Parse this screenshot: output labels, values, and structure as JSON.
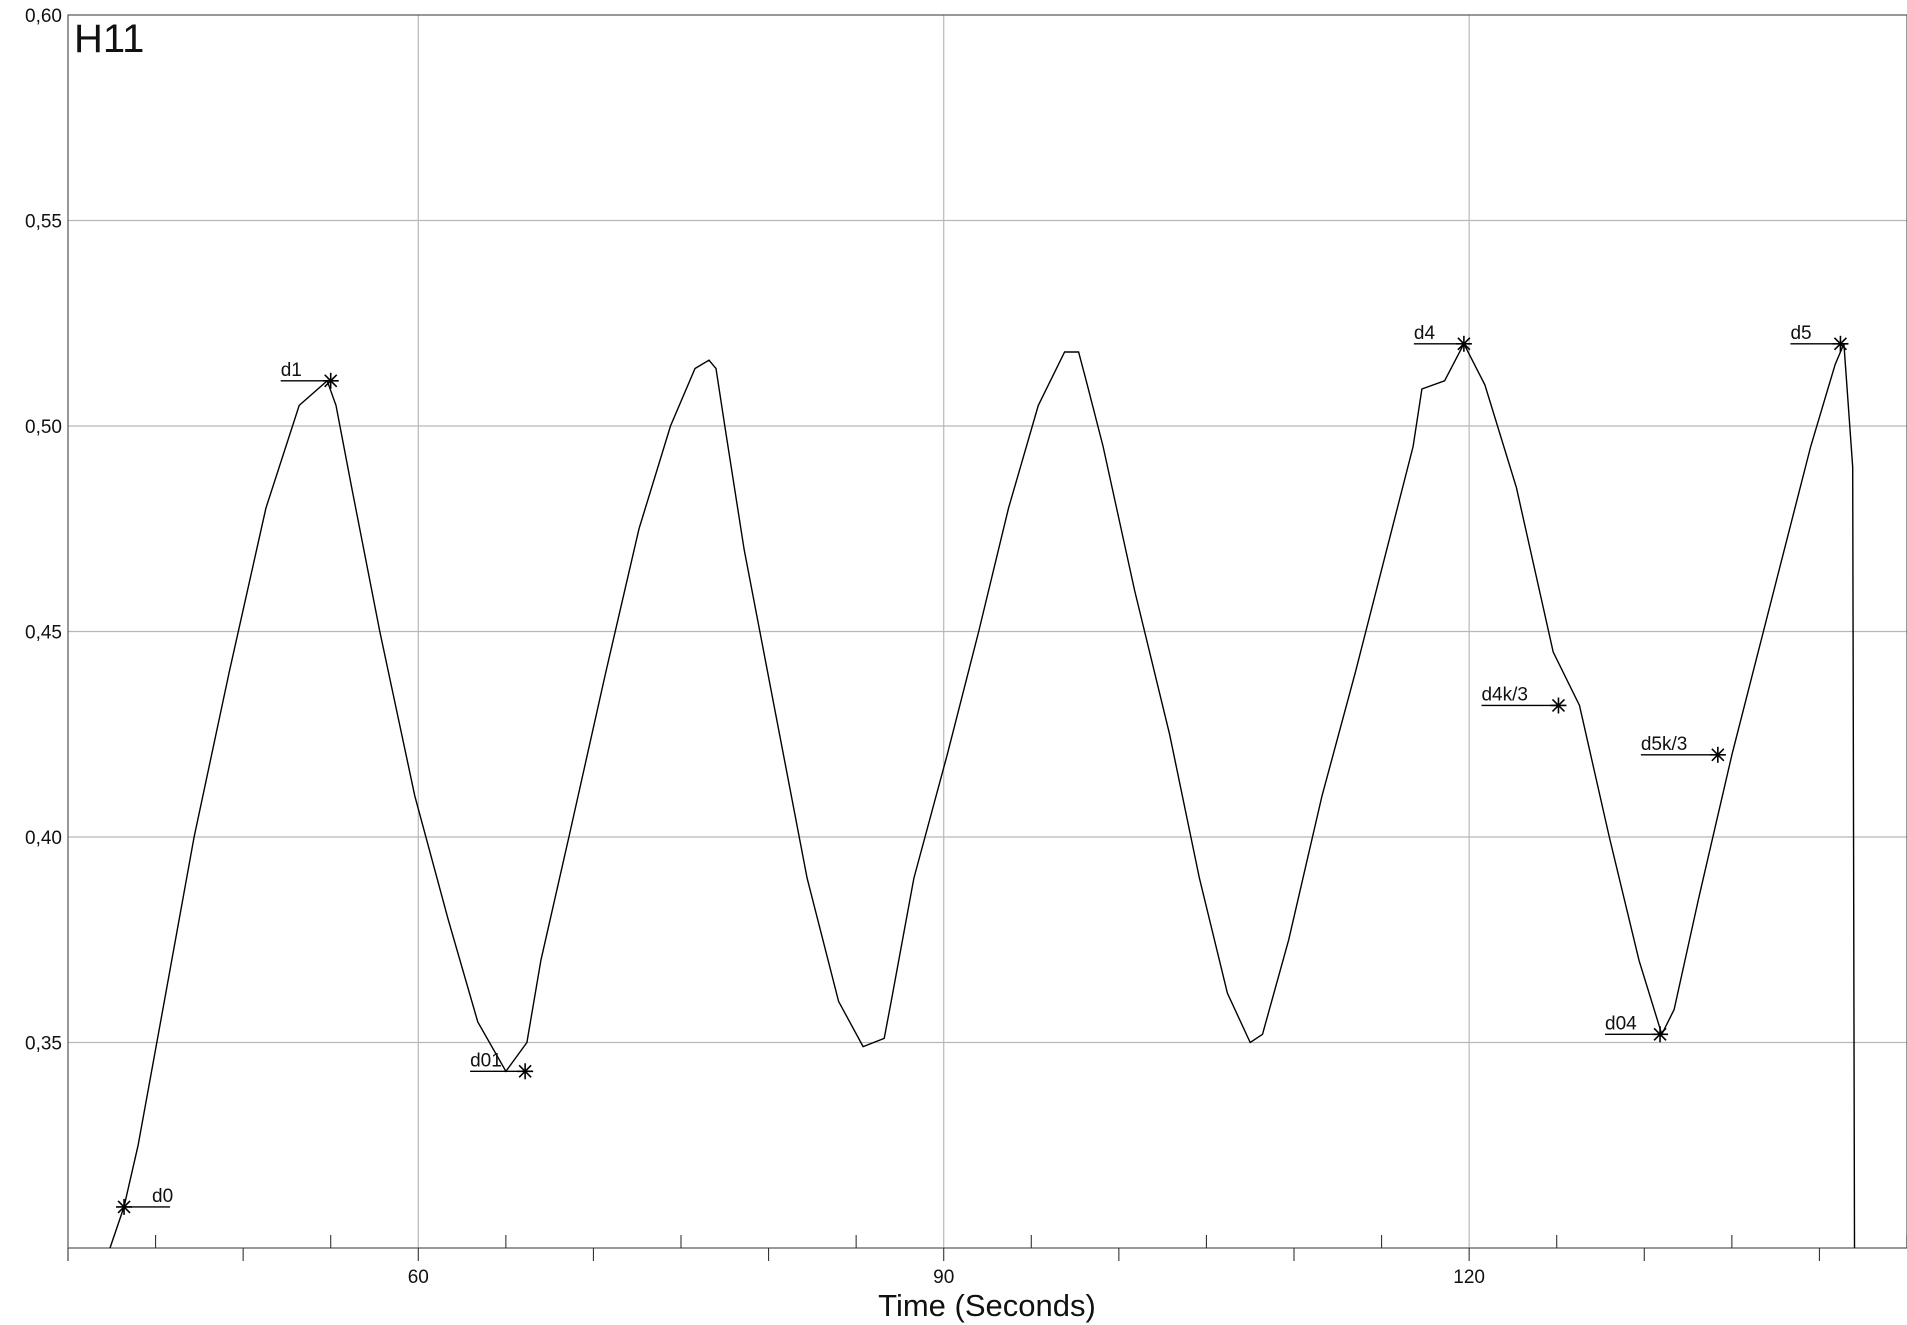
{
  "chart_data": {
    "type": "line",
    "title": "H11",
    "xlabel": "Time (Seconds)",
    "ylabel": "",
    "xlim": [
      40,
      145
    ],
    "ylim": [
      0.3,
      0.6
    ],
    "x_tick_labels": [
      "60",
      "90",
      "120"
    ],
    "x_ticks_labeled": [
      60,
      90,
      120
    ],
    "x_minor_step": 5,
    "y_tick_labels": [
      "0,35",
      "0,40",
      "0,45",
      "0,50",
      "0,55",
      "0,60"
    ],
    "y_ticks": [
      0.35,
      0.4,
      0.45,
      0.5,
      0.55,
      0.6
    ],
    "grid": true,
    "series": [
      {
        "x": [
          42.4,
          43.2,
          44.0,
          45.5,
          47.2,
          49.2,
          51.3,
          53.2,
          54.8,
          55.3,
          56.2,
          57.8,
          59.8,
          61.7,
          63.4,
          65.0,
          66.2,
          67.0,
          68.6,
          70.7,
          72.6,
          74.4,
          75.8,
          76.6,
          77.0,
          77.5,
          78.6,
          80.4,
          82.2,
          84.0,
          85.4,
          86.6,
          87.0,
          88.3,
          90.2,
          92.0,
          93.7,
          95.4,
          96.9,
          97.7,
          98.2,
          99.1,
          100.9,
          102.9,
          104.6,
          106.2,
          107.5,
          108.2,
          109.7,
          111.6,
          113.5,
          115.3,
          116.8,
          117.3,
          118.6,
          119.7,
          120.9,
          122.7,
          124.8,
          126.3,
          128.0,
          129.7,
          131.0,
          131.7,
          133.1,
          135.0,
          136.2,
          138.0,
          139.5,
          140.9,
          141.4,
          141.9,
          142.0
        ],
        "y": [
          0.3,
          0.31,
          0.325,
          0.36,
          0.4,
          0.44,
          0.48,
          0.505,
          0.511,
          0.505,
          0.485,
          0.45,
          0.41,
          0.38,
          0.355,
          0.343,
          0.35,
          0.37,
          0.4,
          0.44,
          0.475,
          0.5,
          0.514,
          0.516,
          0.514,
          0.5,
          0.47,
          0.43,
          0.39,
          0.36,
          0.349,
          0.351,
          0.36,
          0.39,
          0.42,
          0.45,
          0.48,
          0.505,
          0.518,
          0.518,
          0.51,
          0.495,
          0.46,
          0.425,
          0.39,
          0.362,
          0.35,
          0.352,
          0.375,
          0.41,
          0.44,
          0.47,
          0.495,
          0.509,
          0.511,
          0.52,
          0.51,
          0.485,
          0.445,
          0.432,
          0.4,
          0.37,
          0.352,
          0.358,
          0.385,
          0.42,
          0.44,
          0.47,
          0.495,
          0.515,
          0.52,
          0.49,
          0.3
        ]
      }
    ],
    "annotations": [
      {
        "label": "d0",
        "x": 43.2,
        "y": 0.31
      },
      {
        "label": "d1",
        "x": 55.0,
        "y": 0.511
      },
      {
        "label": "d01",
        "x": 66.1,
        "y": 0.343
      },
      {
        "label": "d4",
        "x": 119.7,
        "y": 0.52
      },
      {
        "label": "d4k/3",
        "x": 125.1,
        "y": 0.432
      },
      {
        "label": "d04",
        "x": 130.9,
        "y": 0.352
      },
      {
        "label": "d5k/3",
        "x": 134.2,
        "y": 0.42
      },
      {
        "label": "d5",
        "x": 141.2,
        "y": 0.52
      }
    ]
  }
}
